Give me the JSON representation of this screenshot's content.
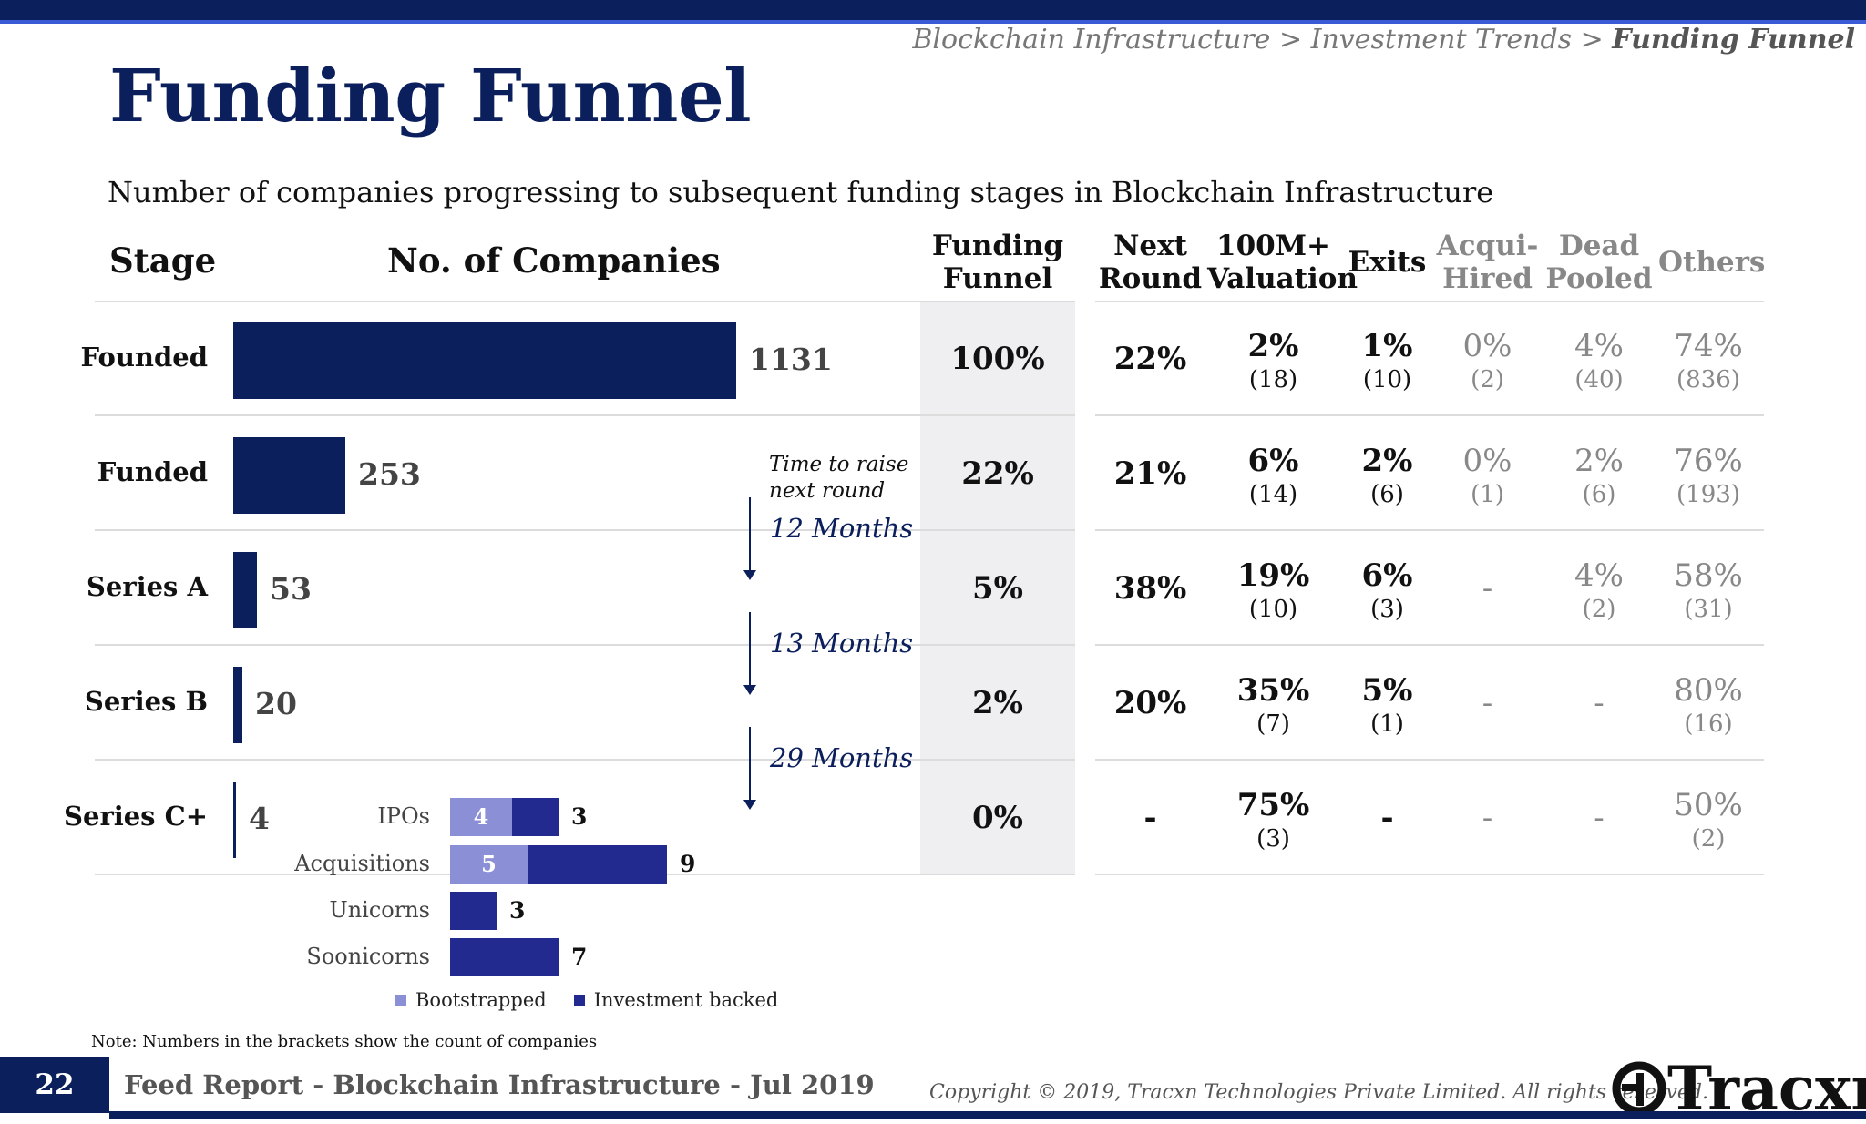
{
  "breadcrumb": {
    "part1": "Blockchain Infrastructure > Investment Trends > ",
    "current": "Funding Funnel"
  },
  "title": "Funding Funnel",
  "subtitle": "Number of companies progressing to subsequent funding stages in Blockchain Infrastructure",
  "headers": {
    "stage": "Stage",
    "companies": "No. of Companies",
    "funnel": [
      "Funding",
      "Funnel"
    ],
    "next_round": [
      "Next",
      "Round"
    ],
    "valuation": [
      "100M+",
      "Valuation"
    ],
    "exits": "Exits",
    "acqui": [
      "Acqui-",
      "Hired"
    ],
    "dead": [
      "Dead",
      "Pooled"
    ],
    "others": "Others"
  },
  "time_to_raise": [
    "Time to raise",
    "next round"
  ],
  "months": [
    "12 Months",
    "13 Months",
    "29 Months"
  ],
  "chart_data": {
    "type": "bar",
    "orientation": "horizontal",
    "categories": [
      "Founded",
      "Funded",
      "Series A",
      "Series B",
      "Series C+"
    ],
    "values": [
      1131,
      253,
      53,
      20,
      4
    ],
    "value_labels": [
      "1131",
      "253",
      "53",
      "20",
      "4"
    ],
    "color": "#0b1f5c"
  },
  "rows": [
    {
      "funnel": "100%",
      "next": "22%",
      "val_pct": "2%",
      "val_cnt": "(18)",
      "exits_pct": "1%",
      "exits_cnt": "(10)",
      "acq_pct": "0%",
      "acq_cnt": "(2)",
      "dead_pct": "4%",
      "dead_cnt": "(40)",
      "oth_pct": "74%",
      "oth_cnt": "(836)"
    },
    {
      "funnel": "22%",
      "next": "21%",
      "val_pct": "6%",
      "val_cnt": "(14)",
      "exits_pct": "2%",
      "exits_cnt": "(6)",
      "acq_pct": "0%",
      "acq_cnt": "(1)",
      "dead_pct": "2%",
      "dead_cnt": "(6)",
      "oth_pct": "76%",
      "oth_cnt": "(193)"
    },
    {
      "funnel": "5%",
      "next": "38%",
      "val_pct": "19%",
      "val_cnt": "(10)",
      "exits_pct": "6%",
      "exits_cnt": "(3)",
      "acq_pct": "-",
      "acq_cnt": "",
      "dead_pct": "4%",
      "dead_cnt": "(2)",
      "oth_pct": "58%",
      "oth_cnt": "(31)"
    },
    {
      "funnel": "2%",
      "next": "20%",
      "val_pct": "35%",
      "val_cnt": "(7)",
      "exits_pct": "5%",
      "exits_cnt": "(1)",
      "acq_pct": "-",
      "acq_cnt": "",
      "dead_pct": "-",
      "dead_cnt": "",
      "oth_pct": "80%",
      "oth_cnt": "(16)"
    },
    {
      "funnel": "0%",
      "next": "-",
      "val_pct": "75%",
      "val_cnt": "(3)",
      "exits_pct": "-",
      "exits_cnt": "",
      "acq_pct": "-",
      "acq_cnt": "",
      "dead_pct": "-",
      "dead_cnt": "",
      "oth_pct": "50%",
      "oth_cnt": "(2)"
    }
  ],
  "exit_chart": {
    "type": "bar",
    "stacked": true,
    "categories": [
      "IPOs",
      "Acquisitions",
      "Unicorns",
      "Soonicorns"
    ],
    "series": [
      {
        "name": "Bootstrapped",
        "values": [
          4,
          5,
          0,
          0
        ],
        "color": "#8b8fd6"
      },
      {
        "name": "Investment backed",
        "values": [
          3,
          9,
          3,
          7
        ],
        "color": "#232a8f"
      }
    ]
  },
  "note": "Note: Numbers in the brackets show the count of companies",
  "footer": {
    "page": "22",
    "report": "Feed Report - Blockchain Infrastructure - Jul 2019",
    "copyright": "Copyright © 2019, Tracxn Technologies Private Limited. All rights reserved.",
    "logo": "Tracxn"
  }
}
